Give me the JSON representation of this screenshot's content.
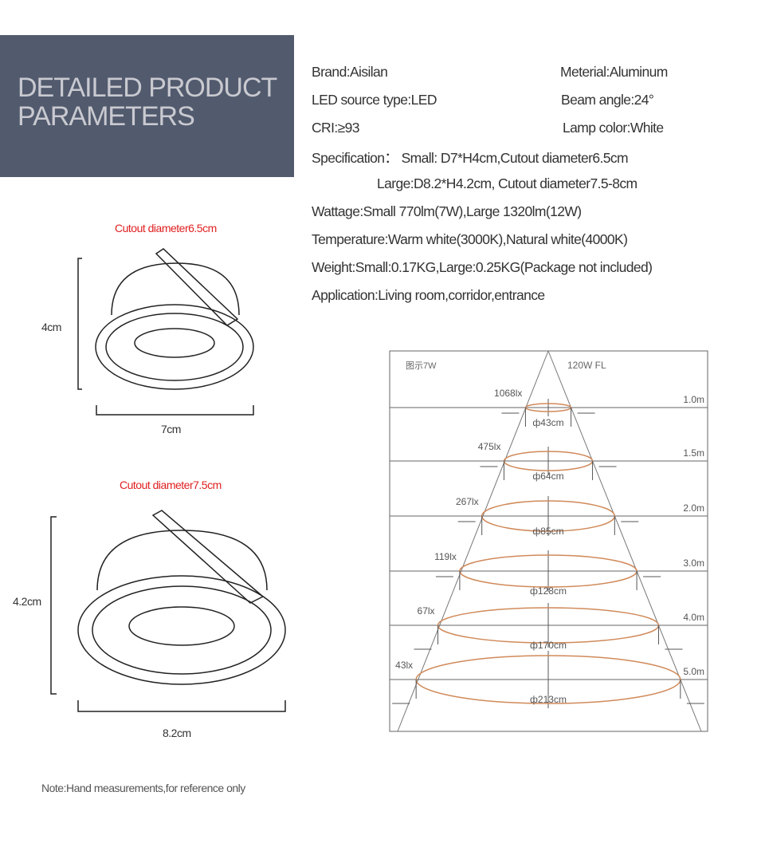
{
  "header": {
    "title": "DETAILED PRODUCT\nPARAMETERS",
    "bg_color": "#525a6e"
  },
  "specs": {
    "brand": "Brand:Aisilan",
    "material": "Meterial:Aluminum",
    "led_source": "LED source type:LED",
    "beam_angle": "Beam angle:24°",
    "cri": "CRI:≥93",
    "lamp_color": "Lamp color:White",
    "specification_small": "Specification：  Small: D7*H4cm,Cutout diameter6.5cm",
    "specification_large": "Large:D8.2*H4.2cm, Cutout diameter7.5-8cm",
    "wattage": "Wattage:Small 770lm(7W),Large 1320lm(12W)",
    "temperature": "Temperature:Warm white(3000K),Natural white(4000K)",
    "weight": "Weight:Small:0.17KG,Large:0.25KG(Package not included)",
    "application": "Application:Living room,corridor,entrance"
  },
  "small_lamp": {
    "cutout": "Cutout diameter6.5cm",
    "height": "4cm",
    "width": "7cm"
  },
  "large_lamp": {
    "cutout": "Cutout diameter7.5cm",
    "height": "4.2cm",
    "width": "8.2cm"
  },
  "note": "Note:Hand measurements,for reference only",
  "beam_diagram": {
    "label_left": "图示7W",
    "label_right": "120W  FL",
    "ellipse_color": "#d08a5a",
    "rows": [
      {
        "distance": "1.0m",
        "lux": "1068lx",
        "diameter": "ф43cm"
      },
      {
        "distance": "1.5m",
        "lux": "475lx",
        "diameter": "ф64cm"
      },
      {
        "distance": "2.0m",
        "lux": "267lx",
        "diameter": "ф85cm"
      },
      {
        "distance": "3.0m",
        "lux": "119lx",
        "diameter": "ф128cm"
      },
      {
        "distance": "4.0m",
        "lux": "67lx",
        "diameter": "ф170cm"
      },
      {
        "distance": "5.0m",
        "lux": "43lx",
        "diameter": "ф213cm"
      }
    ]
  }
}
